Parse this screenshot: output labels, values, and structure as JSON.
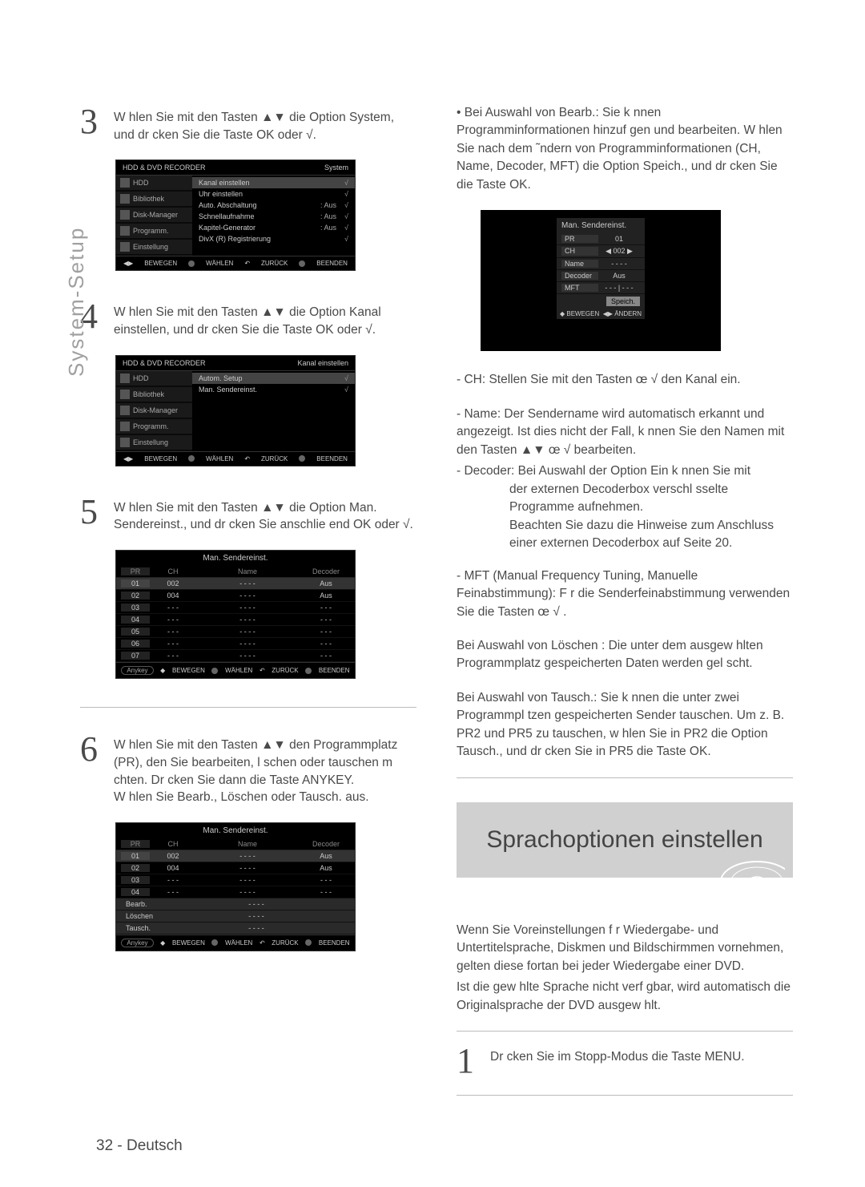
{
  "sidelabel": "System-Setup",
  "page_number": "32 - Deutsch",
  "glyphs": {
    "updown": "▲▼",
    "right": "√",
    "left": "œ",
    "leftright": "œ √",
    "play": "▶",
    "back": "◀"
  },
  "steps": {
    "s3": {
      "num": "3",
      "text": "W hlen Sie mit den Tasten  ▲▼ die Option System, und dr cken Sie die Taste  OK oder √."
    },
    "s4": {
      "num": "4",
      "text": "W hlen Sie mit den Tasten  ▲▼ die Option Kanal einstellen, und dr cken Sie die Taste  OK oder √."
    },
    "s5": {
      "num": "5",
      "text": "W hlen Sie mit den Tasten  ▲▼ die Option Man. Sendereinst., und dr cken Sie anschlie end   OK oder √."
    },
    "s6": {
      "num": "6",
      "text": "W hlen Sie mit den Tasten  ▲▼ den Programmplatz (PR), den Sie bearbeiten, l schen oder tauschen m chten. Dr cken Sie dann die Taste ANYKEY."
    },
    "s6b": "W hlen Sie  Bearb., Löschen oder Tausch. aus.",
    "s1r": {
      "num": "1",
      "text": "Dr cken Sie im Stopp-Modus die Taste  MENU."
    }
  },
  "osd_header": {
    "title": "HDD & DVD RECORDER",
    "mode_system": "System",
    "mode_kanal": "Kanal einstellen"
  },
  "osd_left_tabs": {
    "hdd": "HDD",
    "bibliothek": "Bibliothek",
    "diskmanager": "Disk-Manager",
    "programm": "Programm.",
    "einstellung": "Einstellung"
  },
  "osd1_items": [
    {
      "label": "Kanal einstellen",
      "val": "",
      "arr": "√",
      "sel": true
    },
    {
      "label": "Uhr einstellen",
      "val": "",
      "arr": "√"
    },
    {
      "label": "Auto. Abschaltung",
      "val": ": Aus",
      "arr": "√"
    },
    {
      "label": "Schnellaufnahme",
      "val": ": Aus",
      "arr": "√"
    },
    {
      "label": "Kapitel-Generator",
      "val": ": Aus",
      "arr": "√"
    },
    {
      "label": "DivX (R) Registrierung",
      "val": "",
      "arr": "√"
    }
  ],
  "osd2_items": [
    {
      "label": "Autom. Setup",
      "val": "",
      "arr": "√",
      "sel": true
    },
    {
      "label": "Man. Sendereinst.",
      "val": "",
      "arr": "√"
    }
  ],
  "footer": {
    "bewegen": "BEWEGEN",
    "wahlen": "WÄHLEN",
    "zuruck": "ZURÜCK",
    "beenden": "BEENDEN",
    "andern": "ÄNDERN"
  },
  "table": {
    "title": "Man. Sendereinst.",
    "cols": {
      "pr": "PR",
      "ch": "CH",
      "name": "Name",
      "decoder": "Decoder"
    },
    "rows": [
      {
        "pr": "01",
        "ch": "002",
        "name": "- - - -",
        "decoder": "Aus",
        "sel": true
      },
      {
        "pr": "02",
        "ch": "004",
        "name": "- - - -",
        "decoder": "Aus"
      },
      {
        "pr": "03",
        "ch": "- - -",
        "name": "- - - -",
        "decoder": "- - -"
      },
      {
        "pr": "04",
        "ch": "- - -",
        "name": "- - - -",
        "decoder": "- - -"
      },
      {
        "pr": "05",
        "ch": "- - -",
        "name": "- - - -",
        "decoder": "- - -"
      },
      {
        "pr": "06",
        "ch": "- - -",
        "name": "- - - -",
        "decoder": "- - -"
      },
      {
        "pr": "07",
        "ch": "- - -",
        "name": "- - - -",
        "decoder": "- - -"
      }
    ],
    "anykey": "Anykey"
  },
  "table2": {
    "rows": [
      {
        "pr": "01",
        "ch": "002",
        "name": "- - - -",
        "decoder": "Aus",
        "sel": true
      },
      {
        "pr": "02",
        "ch": "004",
        "name": "- - - -",
        "decoder": "Aus"
      },
      {
        "pr": "03",
        "ch": "- - -",
        "name": "- - - -",
        "decoder": "- - -"
      },
      {
        "pr": "04",
        "ch": "- - -",
        "name": "- - - -",
        "decoder": "- - -"
      }
    ],
    "menu": [
      {
        "label": "Bearb.",
        "name": "- - - -"
      },
      {
        "label": "Löschen",
        "name": "- - - -"
      },
      {
        "label": "Tausch.",
        "name": "- - - -"
      }
    ]
  },
  "right_top": "• Bei Auswahl von Bearb.: Sie k nnen Programminformationen hinzuf gen und bearbeiten. W hlen Sie nach dem ˜ndern von Programminformationen (CH, Name, Decoder, MFT) die Option Speich., und dr cken Sie die Taste  OK.",
  "small_osd": {
    "title": "Man. Sendereinst.",
    "rows": [
      {
        "lab": "PR",
        "val": "01"
      },
      {
        "lab": "CH",
        "val": "◀ 002 ▶"
      },
      {
        "lab": "Name",
        "val": "- - - -"
      },
      {
        "lab": "Decoder",
        "val": "Aus"
      },
      {
        "lab": "MFT",
        "val": "- - - | - - -"
      }
    ],
    "btn": "Speich.",
    "foot_l": "BEWEGEN",
    "foot_r": "ÄNDERN"
  },
  "right_list": {
    "ch": "- CH: Stellen Sie mit den Tasten œ √  den Kanal ein.",
    "name": "- Name: Der Sendername wird automatisch erkannt und angezeigt. Ist dies nicht der Fall, k nnen Sie den Namen mit den Tasten ▲▼ œ √  bearbeiten.",
    "decoder_head": "- Decoder: Bei Auswahl der Option Ein k nnen Sie mit",
    "decoder_sub": "der externen Decoderbox verschl sselte Programme aufnehmen.\nBeachten Sie dazu die Hinweise zum Anschluss einer externen Decoderbox auf Seite 20.",
    "mft": "- MFT (Manual Frequency Tuning, Manuelle Feinabstimmung): F r die Senderfeinabstimmung verwenden Sie die Tasten œ √ ."
  },
  "right_p2": "Bei Auswahl von Löschen : Die unter dem ausgew hlten Programmplatz gespeicherten Daten werden gel scht.",
  "right_p3": "Bei Auswahl von Tausch.: Sie k nnen die unter zwei Programmpl tzen gespeicherten Sender tauschen. Um z. B. PR2 und PR5 zu tauschen, w hlen Sie in PR2 die Option Tausch., und dr cken Sie in PR5 die Taste  OK.",
  "section_title": "Sprachoptionen einstellen",
  "right_p4": "Wenn Sie Voreinstellungen f r Wiedergabe- und Untertitelsprache, Diskmen  und Bildschirmmen  vornehmen, gelten diese fortan bei jeder Wiedergabe einer DVD.",
  "right_p5": "Ist die gew hlte Sprache nicht verf gbar, wird automatisch die Originalsprache der DVD ausgew hlt.",
  "colors": {
    "text": "#4a4a4a",
    "banner_bg": "#d0d0d0",
    "osd_bg": "#000000"
  }
}
